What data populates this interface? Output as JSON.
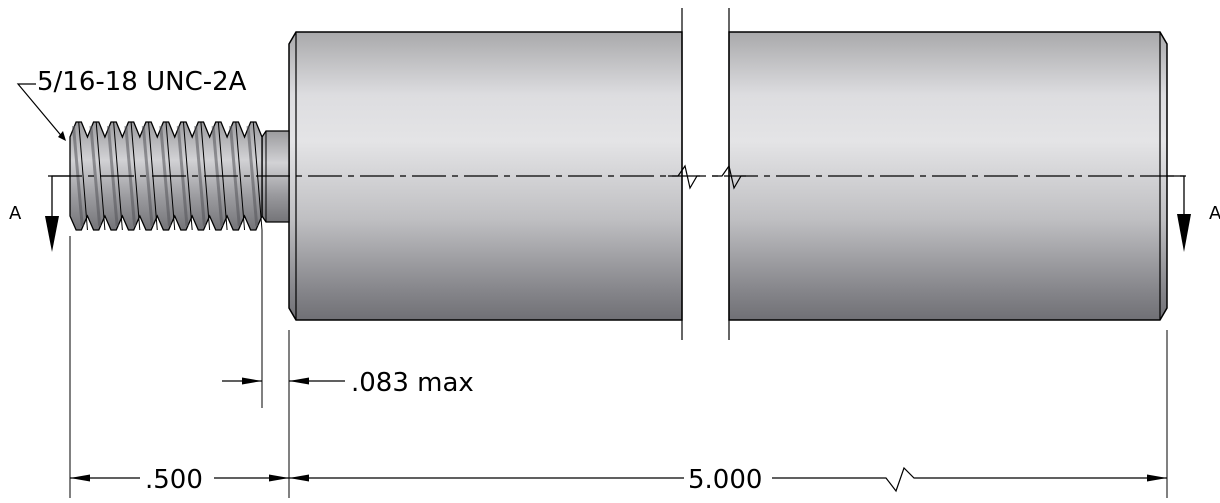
{
  "drawing": {
    "thread_callout": "5/16-18 UNC-2A",
    "section_label_left": "A",
    "section_label_right": "A",
    "dim_undercut": ".083 max",
    "dim_thread_length": ".500",
    "dim_body_length": "5.000"
  }
}
